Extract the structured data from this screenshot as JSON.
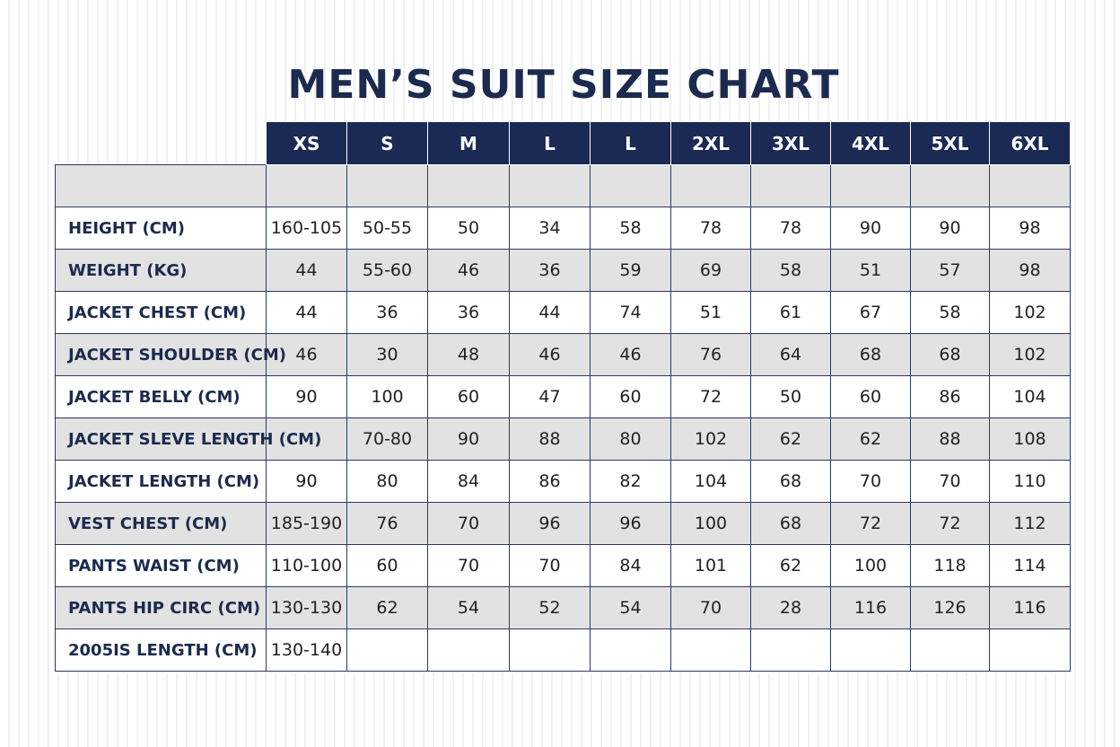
{
  "title": "MEN’S SUIT SIZE CHART",
  "colors": {
    "header_bg": "#1b2a55",
    "header_text": "#ffffff",
    "title_text": "#1b2a4e",
    "shaded_row": "#e2e2e2",
    "grid_line": "#2a3a5f"
  },
  "sizes": [
    "XS",
    "S",
    "M",
    "L",
    "L",
    "2XL",
    "3XL",
    "4XL",
    "5XL",
    "6XL"
  ],
  "rows": [
    {
      "label": "HEIGHT (CM)",
      "values": [
        "160-105",
        "50-55",
        "50",
        "34",
        "58",
        "78",
        "78",
        "90",
        "90",
        "98"
      ]
    },
    {
      "label": "WEIGHT (KG)",
      "values": [
        "44",
        "55-60",
        "46",
        "36",
        "59",
        "69",
        "58",
        "51",
        "57",
        "98"
      ]
    },
    {
      "label": "JACKET CHEST (CM)",
      "values": [
        "44",
        "36",
        "36",
        "44",
        "74",
        "51",
        "61",
        "67",
        "58",
        "102"
      ]
    },
    {
      "label": "JACKET SHOULDER (CM)",
      "values": [
        "46",
        "30",
        "48",
        "46",
        "46",
        "76",
        "64",
        "68",
        "68",
        "102"
      ]
    },
    {
      "label": "JACKET BELLY (CM)",
      "values": [
        "90",
        "100",
        "60",
        "47",
        "60",
        "72",
        "50",
        "60",
        "86",
        "104"
      ]
    },
    {
      "label": "JACKET SLEVE LENGTH (CM)",
      "values": [
        "",
        "70-80",
        "90",
        "88",
        "80",
        "102",
        "62",
        "62",
        "88",
        "108"
      ]
    },
    {
      "label": "JACKET LENGTH (CM)",
      "values": [
        "90",
        "80",
        "84",
        "86",
        "82",
        "104",
        "68",
        "70",
        "70",
        "110"
      ]
    },
    {
      "label": "VEST CHEST (CM)",
      "values": [
        "185-190",
        "76",
        "70",
        "96",
        "96",
        "100",
        "68",
        "72",
        "72",
        "112"
      ]
    },
    {
      "label": "PANTS WAIST (CM)",
      "values": [
        "110-100",
        "60",
        "70",
        "70",
        "84",
        "101",
        "62",
        "100",
        "118",
        "114"
      ]
    },
    {
      "label": "PANTS HIP CIRC (CM)",
      "values": [
        "130-130",
        "62",
        "54",
        "52",
        "54",
        "70",
        "28",
        "116",
        "126",
        "116"
      ]
    },
    {
      "label": "2005IS LENGTH (CM)",
      "values": [
        "130-140",
        "",
        "",
        "",
        "",
        "",
        "",
        "",
        "",
        ""
      ]
    }
  ]
}
